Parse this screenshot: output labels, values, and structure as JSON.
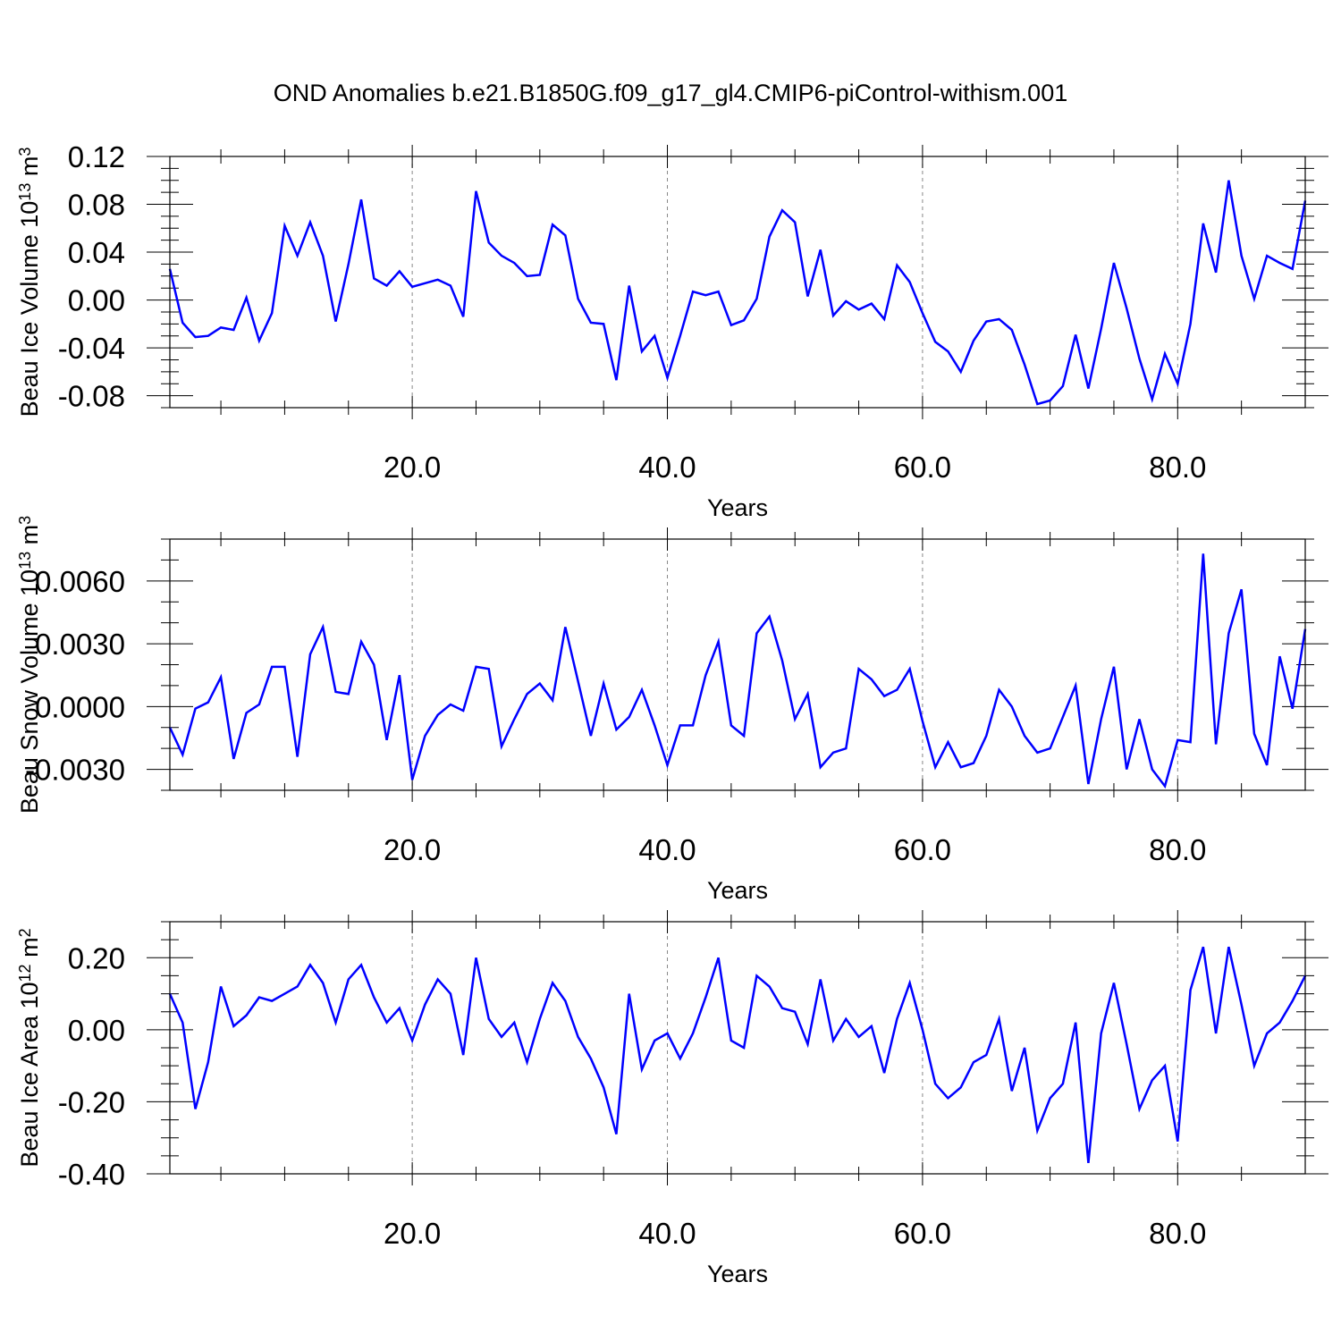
{
  "title": "OND Anomalies b.e21.B1850G.f09_g17_gl4.CMIP6-piControl-withism.001",
  "colors": {
    "line": "#0000ff",
    "axis": "#000000",
    "grid": "#888888"
  },
  "chart_data": [
    {
      "type": "line",
      "title": "OND Anomalies b.e21.B1850G.f09_g17_gl4.CMIP6-piControl-withism.001",
      "xlabel": "Years",
      "ylabel": "Beau Ice Volume 10",
      "ylabel_sup": "13",
      "ylabel_unit": " m",
      "ylabel_unit_sup": "3",
      "xlim": [
        1,
        90
      ],
      "ylim": [
        -0.09,
        0.12
      ],
      "xticks": [
        20,
        40,
        60,
        80
      ],
      "xtick_labels": [
        "20.0",
        "40.0",
        "60.0",
        "80.0"
      ],
      "yticks": [
        -0.08,
        -0.04,
        0.0,
        0.04,
        0.08,
        0.12
      ],
      "ytick_labels": [
        "-0.08",
        "-0.04",
        "0.00",
        "0.04",
        "0.08",
        "0.12"
      ],
      "grid": "vertical dashed at x ticks",
      "series": [
        {
          "x": [
            1,
            2,
            3,
            4,
            5,
            6,
            7,
            8,
            9,
            10,
            11,
            12,
            13,
            14,
            15,
            16,
            17,
            18,
            19,
            20,
            21,
            22,
            23,
            24,
            25,
            26,
            27,
            28,
            29,
            30,
            31,
            32,
            33,
            34,
            35,
            36,
            37,
            38,
            39,
            40,
            41,
            42,
            43,
            44,
            45,
            46,
            47,
            48,
            49,
            50,
            51,
            52,
            53,
            54,
            55,
            56,
            57,
            58,
            59,
            60,
            61,
            62,
            63,
            64,
            65,
            66,
            67,
            68,
            69,
            70,
            71,
            72,
            73,
            74,
            75,
            76,
            77,
            78,
            79,
            80,
            81,
            82,
            83,
            84,
            85,
            86,
            87,
            88,
            89,
            90
          ],
          "y": [
            0.026,
            -0.019,
            -0.031,
            -0.03,
            -0.023,
            -0.025,
            0.002,
            -0.034,
            -0.011,
            0.062,
            0.037,
            0.065,
            0.037,
            -0.018,
            0.03,
            0.084,
            0.018,
            0.012,
            0.024,
            0.011,
            0.014,
            0.017,
            0.012,
            -0.014,
            0.091,
            0.048,
            0.037,
            0.031,
            0.02,
            0.021,
            0.063,
            0.054,
            0.001,
            -0.019,
            -0.02,
            -0.067,
            0.012,
            -0.043,
            -0.03,
            -0.065,
            -0.03,
            0.007,
            0.004,
            0.007,
            -0.021,
            -0.017,
            0.001,
            0.053,
            0.075,
            0.065,
            0.003,
            0.042,
            -0.013,
            -0.001,
            -0.008,
            -0.003,
            -0.016,
            0.029,
            0.015,
            -0.011,
            -0.035,
            -0.043,
            -0.06,
            -0.034,
            -0.018,
            -0.016,
            -0.025,
            -0.054,
            -0.087,
            -0.084,
            -0.072,
            -0.029,
            -0.074,
            -0.024,
            0.031,
            -0.007,
            -0.049,
            -0.083,
            -0.045,
            -0.07,
            -0.02,
            0.064,
            0.023,
            0.1,
            0.037,
            0.001,
            0.037,
            0.031,
            0.026,
            0.083
          ]
        }
      ]
    },
    {
      "type": "line",
      "xlabel": "Years",
      "ylabel": "Beau Snow Volume 10",
      "ylabel_sup": "13",
      "ylabel_unit": " m",
      "ylabel_unit_sup": "3",
      "xlim": [
        1,
        90
      ],
      "ylim": [
        -0.004,
        0.008
      ],
      "xticks": [
        20,
        40,
        60,
        80
      ],
      "xtick_labels": [
        "20.0",
        "40.0",
        "60.0",
        "80.0"
      ],
      "yticks": [
        -0.003,
        0.0,
        0.003,
        0.006
      ],
      "ytick_labels": [
        "-0.0030",
        "0.0000",
        "0.0030",
        "0.0060"
      ],
      "grid": "vertical dashed at x ticks",
      "series": [
        {
          "x": [
            1,
            2,
            3,
            4,
            5,
            6,
            7,
            8,
            9,
            10,
            11,
            12,
            13,
            14,
            15,
            16,
            17,
            18,
            19,
            20,
            21,
            22,
            23,
            24,
            25,
            26,
            27,
            28,
            29,
            30,
            31,
            32,
            33,
            34,
            35,
            36,
            37,
            38,
            39,
            40,
            41,
            42,
            43,
            44,
            45,
            46,
            47,
            48,
            49,
            50,
            51,
            52,
            53,
            54,
            55,
            56,
            57,
            58,
            59,
            60,
            61,
            62,
            63,
            64,
            65,
            66,
            67,
            68,
            69,
            70,
            71,
            72,
            73,
            74,
            75,
            76,
            77,
            78,
            79,
            80,
            81,
            82,
            83,
            84,
            85,
            86,
            87,
            88,
            89,
            90
          ],
          "y": [
            -0.001,
            -0.0023,
            -0.0001,
            0.0002,
            0.0014,
            -0.0025,
            -0.0003,
            0.0001,
            0.0019,
            0.0019,
            -0.0024,
            0.0025,
            0.0038,
            0.0007,
            0.0006,
            0.0031,
            0.002,
            -0.0016,
            0.0015,
            -0.0035,
            -0.0014,
            -0.0004,
            0.0001,
            -0.0002,
            0.0019,
            0.0018,
            -0.0019,
            -0.0006,
            0.0006,
            0.0011,
            0.0003,
            0.0038,
            0.0012,
            -0.0014,
            0.0011,
            -0.0011,
            -0.0005,
            0.0008,
            -0.0009,
            -0.0028,
            -0.0009,
            -0.0009,
            0.0015,
            0.0031,
            -0.0009,
            -0.0014,
            0.0035,
            0.0043,
            0.0022,
            -0.0006,
            0.0006,
            -0.0029,
            -0.0022,
            -0.002,
            0.0018,
            0.0013,
            0.0005,
            0.0008,
            0.0018,
            -0.0007,
            -0.0029,
            -0.0017,
            -0.0029,
            -0.0027,
            -0.0014,
            0.0008,
            0.0,
            -0.0014,
            -0.0022,
            -0.002,
            -0.0005,
            0.001,
            -0.0037,
            -0.0006,
            0.0019,
            -0.003,
            -0.0006,
            -0.003,
            -0.0038,
            -0.0016,
            -0.0017,
            0.0073,
            -0.0018,
            0.0035,
            0.0056,
            -0.0013,
            -0.0028,
            0.0024,
            -0.0001,
            0.0037
          ]
        }
      ]
    },
    {
      "type": "line",
      "xlabel": "Years",
      "ylabel": "Beau Ice Area 10",
      "ylabel_sup": "12",
      "ylabel_unit": " m",
      "ylabel_unit_sup": "2",
      "xlim": [
        1,
        90
      ],
      "ylim": [
        -0.4,
        0.3
      ],
      "xticks": [
        20,
        40,
        60,
        80
      ],
      "xtick_labels": [
        "20.0",
        "40.0",
        "60.0",
        "80.0"
      ],
      "yticks": [
        -0.4,
        -0.2,
        0.0,
        0.2
      ],
      "ytick_labels": [
        "-0.40",
        "-0.20",
        "0.00",
        "0.20"
      ],
      "grid": "vertical dashed at x ticks",
      "series": [
        {
          "x": [
            1,
            2,
            3,
            4,
            5,
            6,
            7,
            8,
            9,
            10,
            11,
            12,
            13,
            14,
            15,
            16,
            17,
            18,
            19,
            20,
            21,
            22,
            23,
            24,
            25,
            26,
            27,
            28,
            29,
            30,
            31,
            32,
            33,
            34,
            35,
            36,
            37,
            38,
            39,
            40,
            41,
            42,
            43,
            44,
            45,
            46,
            47,
            48,
            49,
            50,
            51,
            52,
            53,
            54,
            55,
            56,
            57,
            58,
            59,
            60,
            61,
            62,
            63,
            64,
            65,
            66,
            67,
            68,
            69,
            70,
            71,
            72,
            73,
            74,
            75,
            76,
            77,
            78,
            79,
            80,
            81,
            82,
            83,
            84,
            85,
            86,
            87,
            88,
            89,
            90
          ],
          "y": [
            0.1,
            0.02,
            -0.22,
            -0.09,
            0.12,
            0.01,
            0.04,
            0.09,
            0.08,
            0.1,
            0.12,
            0.18,
            0.13,
            0.02,
            0.14,
            0.18,
            0.09,
            0.02,
            0.06,
            -0.03,
            0.07,
            0.14,
            0.1,
            -0.07,
            0.2,
            0.03,
            -0.02,
            0.02,
            -0.09,
            0.03,
            0.13,
            0.08,
            -0.02,
            -0.08,
            -0.16,
            -0.29,
            0.1,
            -0.11,
            -0.03,
            -0.01,
            -0.08,
            -0.01,
            0.09,
            0.2,
            -0.03,
            -0.05,
            0.15,
            0.12,
            0.06,
            0.05,
            -0.04,
            0.14,
            -0.03,
            0.03,
            -0.02,
            0.01,
            -0.12,
            0.03,
            0.13,
            0.0,
            -0.15,
            -0.19,
            -0.16,
            -0.09,
            -0.07,
            0.03,
            -0.17,
            -0.05,
            -0.28,
            -0.19,
            -0.15,
            0.02,
            -0.37,
            -0.01,
            0.13,
            -0.04,
            -0.22,
            -0.14,
            -0.1,
            -0.31,
            0.11,
            0.23,
            -0.01,
            0.23,
            0.07,
            -0.1,
            -0.01,
            0.02,
            0.08,
            0.15
          ]
        }
      ]
    }
  ]
}
